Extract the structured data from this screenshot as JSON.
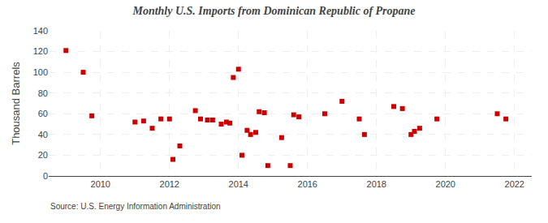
{
  "chart_data": {
    "type": "scatter",
    "title": "Monthly U.S. Imports from Dominican Republic of Propane",
    "ylabel": "Thousand Barrels",
    "annotations": [
      "Source: U.S. Energy Information Administration"
    ],
    "x": [
      2009.0,
      2009.5,
      2009.75,
      2011.0,
      2011.25,
      2011.5,
      2011.75,
      2012.0,
      2012.1,
      2012.3,
      2012.75,
      2012.9,
      2013.1,
      2013.25,
      2013.5,
      2013.65,
      2013.75,
      2013.85,
      2014.0,
      2014.1,
      2014.25,
      2014.35,
      2014.5,
      2014.6,
      2014.75,
      2014.85,
      2015.25,
      2015.5,
      2015.6,
      2015.75,
      2016.5,
      2017.0,
      2017.5,
      2017.65,
      2018.5,
      2018.75,
      2019.0,
      2019.1,
      2019.25,
      2019.75,
      2021.5,
      2021.75
    ],
    "values": [
      121,
      100,
      58,
      52,
      53,
      46,
      55,
      55,
      16,
      29,
      63,
      55,
      54,
      54,
      50,
      52,
      51,
      95,
      103,
      20,
      44,
      40,
      42,
      62,
      61,
      10,
      37,
      10,
      59,
      57,
      60,
      72,
      55,
      40,
      67,
      65,
      40,
      43,
      46,
      55,
      60,
      55
    ],
    "color": "#cc0000",
    "marker": "square",
    "xlim": [
      2008.5,
      2022.5
    ],
    "xticks": [
      2010,
      2012,
      2014,
      2016,
      2018,
      2020,
      2022
    ],
    "ylim": [
      0,
      140
    ],
    "yticks": [
      0,
      20,
      40,
      60,
      80,
      100,
      120,
      140
    ],
    "grid": true
  }
}
